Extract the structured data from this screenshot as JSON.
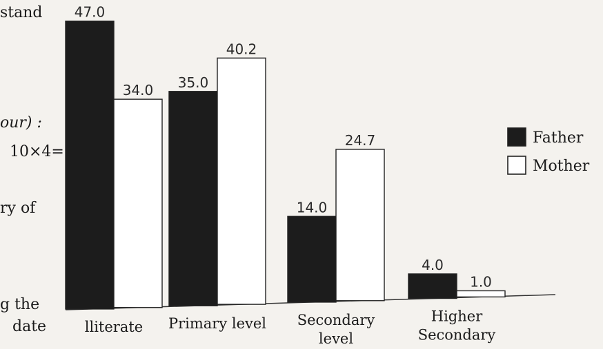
{
  "page_text": {
    "frag_stand": "stand",
    "frag_our": "our) :",
    "frag_marks": "10×4=",
    "frag_ry_of": "ry  of",
    "frag_g_the": "g  the",
    "frag_date": "date"
  },
  "chart_data": {
    "type": "bar",
    "categories": [
      "Illiterate",
      "Primary level",
      "Secondary level",
      "Higher Secondary"
    ],
    "category_lines": [
      [
        "lliterate"
      ],
      [
        "Primary level"
      ],
      [
        "Secondary",
        "level"
      ],
      [
        "Higher",
        "Secondary"
      ]
    ],
    "series": [
      {
        "name": "Father",
        "values": [
          47.0,
          35.0,
          14.0,
          4.0
        ],
        "color": "#1c1c1c"
      },
      {
        "name": "Mother",
        "values": [
          34.0,
          40.2,
          24.7,
          1.0
        ],
        "color": "#ffffff"
      }
    ],
    "value_labels": [
      [
        "47.0",
        "35.0",
        "14.0",
        "4.0"
      ],
      [
        "34.0",
        "40.2",
        "24.7",
        "1.0"
      ]
    ],
    "title": "",
    "xlabel": "",
    "ylabel": "",
    "ylim": [
      0,
      50
    ],
    "grid": false,
    "legend": "right"
  }
}
